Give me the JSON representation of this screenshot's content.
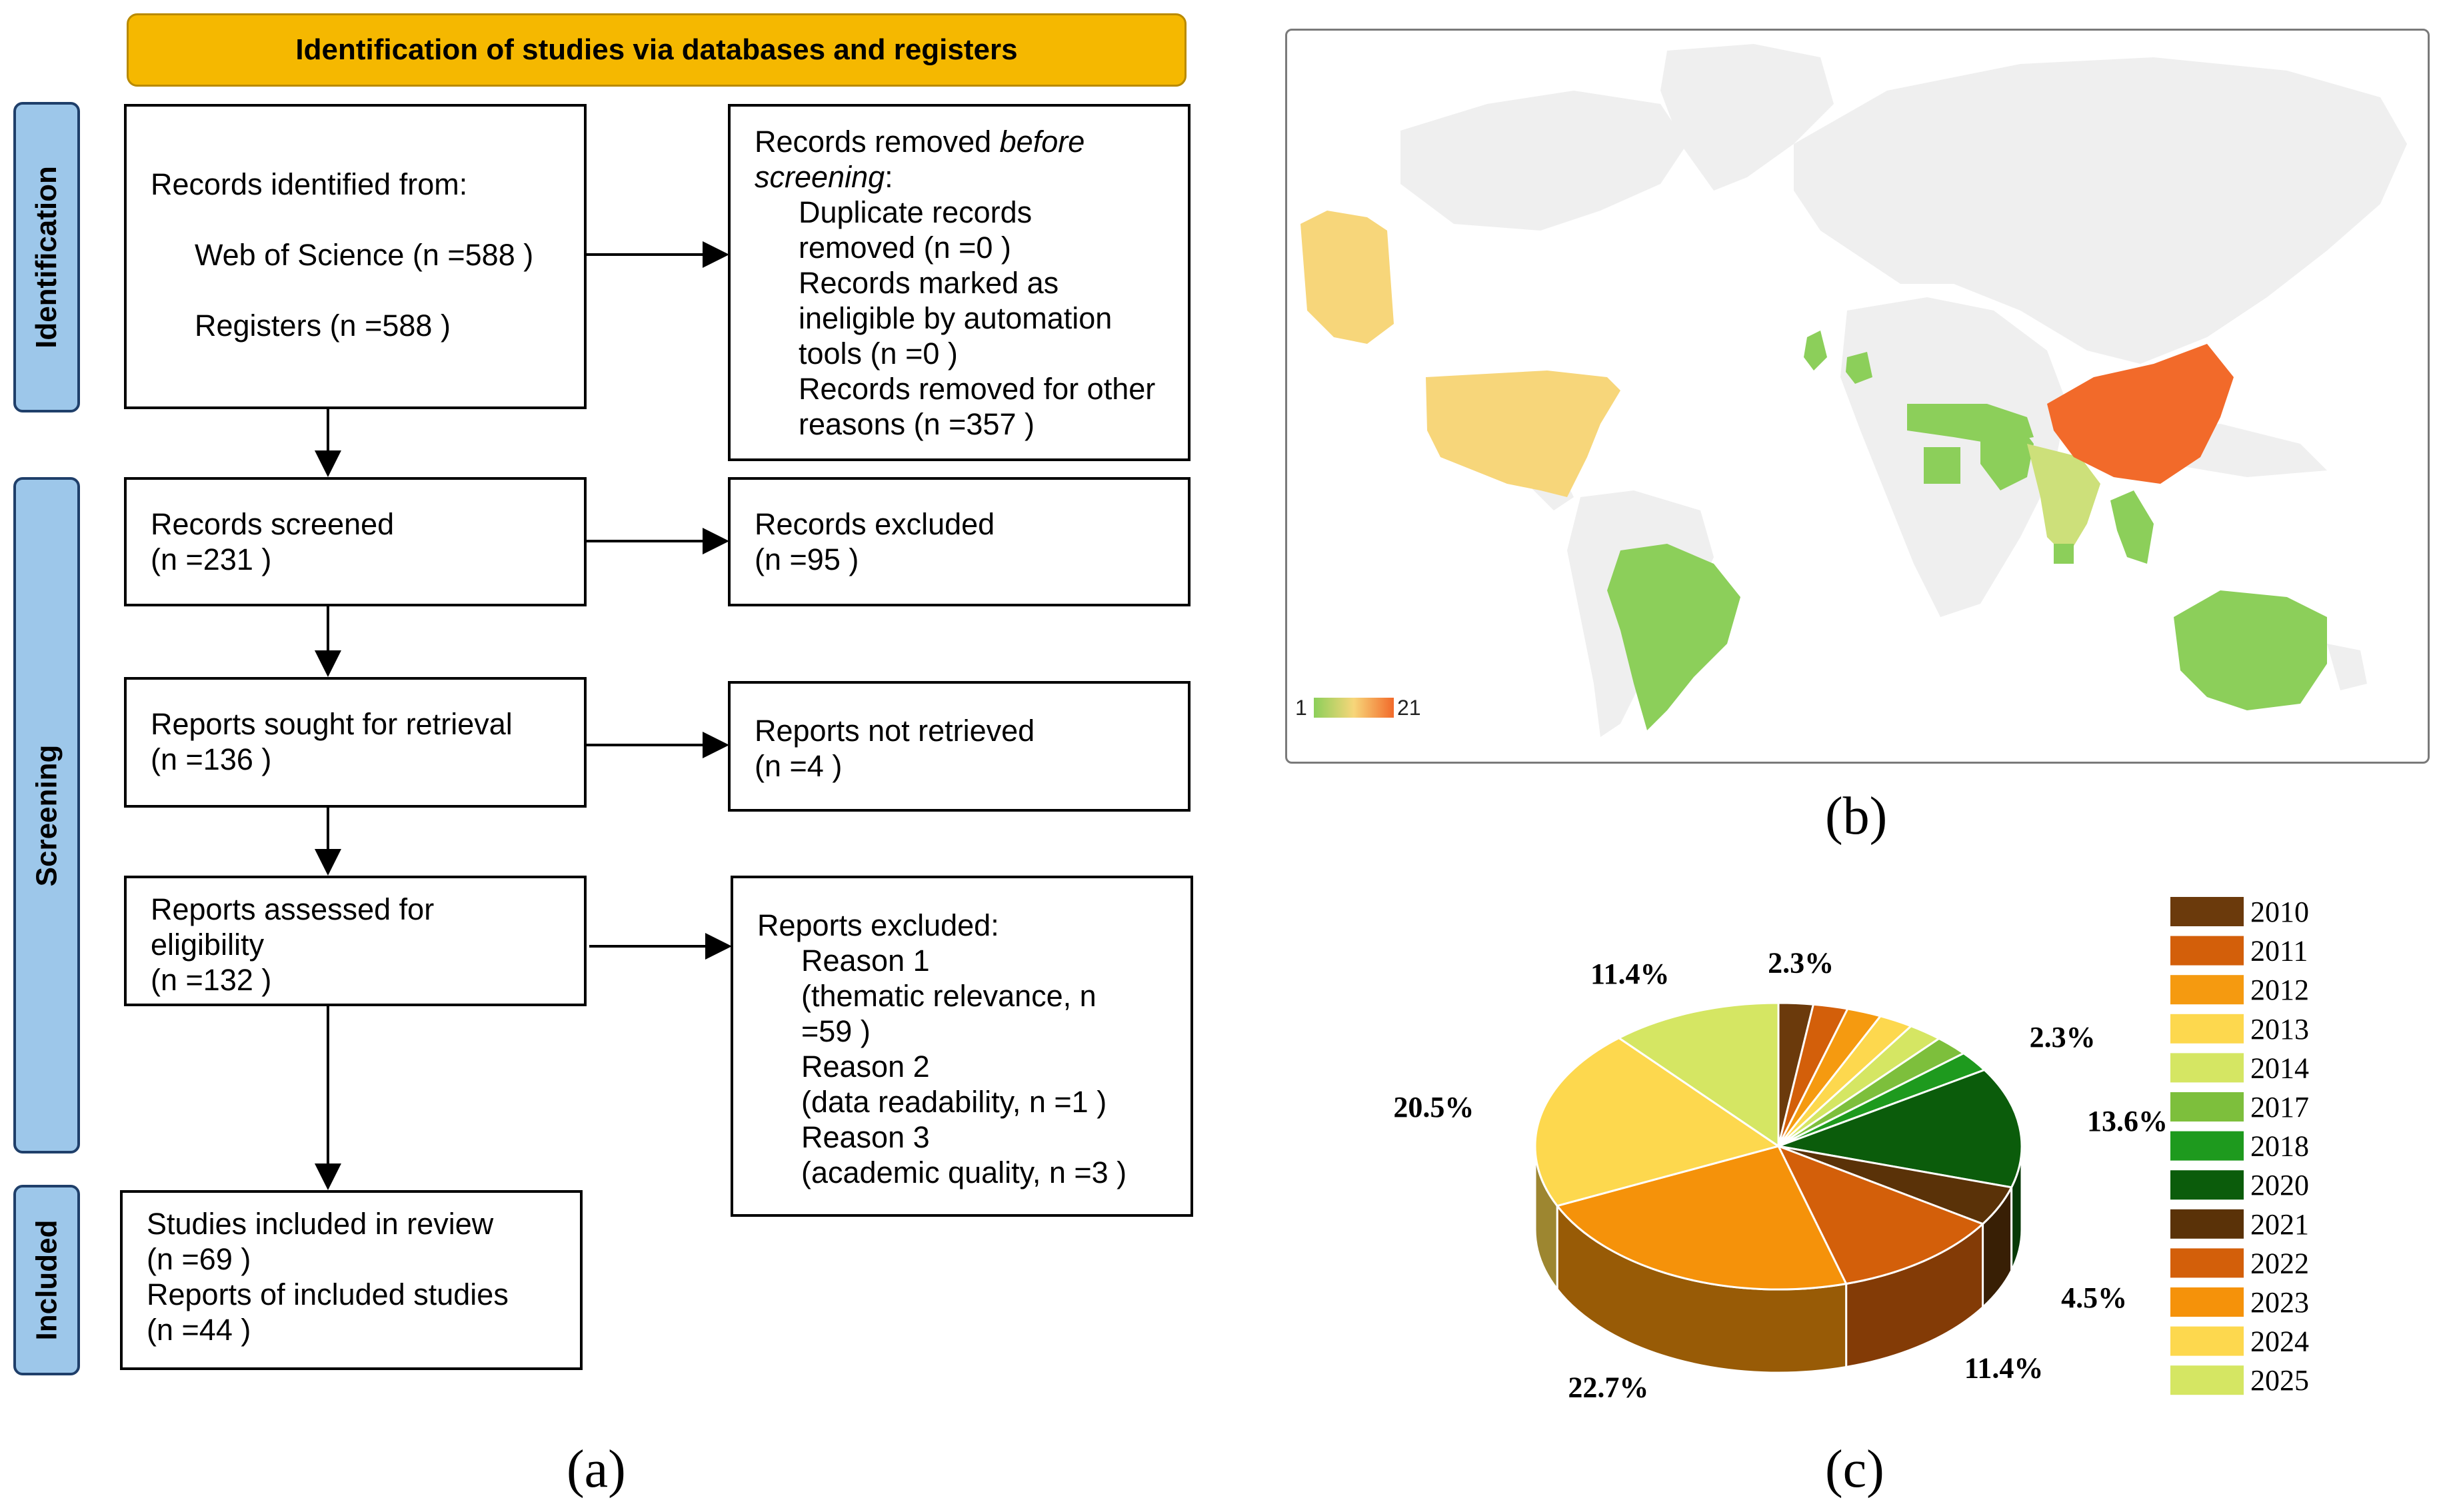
{
  "panel_a": {
    "header": "Identification of studies via databases and registers",
    "phases": [
      "Identification",
      "Screening",
      "Included"
    ],
    "identified": {
      "title": "Records identified from:",
      "lines": [
        "Web of Science (n =588 )",
        "Registers (n =588 )"
      ]
    },
    "removed": {
      "title_plain": "Records removed ",
      "title_italic": "before",
      "title_italic_2": "screening",
      "title_colon": ":",
      "lines": [
        "Duplicate records",
        "removed  (n =0 )",
        "Records marked as",
        "ineligible by automation",
        "tools (n =0 )",
        "Records removed for other",
        "reasons (n =357 )"
      ]
    },
    "screened": {
      "lines": [
        "Records screened",
        "(n =231 )"
      ]
    },
    "excluded": {
      "lines": [
        "Records excluded",
        "(n =95 )"
      ]
    },
    "sought": {
      "lines": [
        "Reports sought for retrieval",
        "(n =136 )"
      ]
    },
    "not_retrieved": {
      "lines": [
        "Reports not retrieved",
        "(n =4 )"
      ]
    },
    "assessed": {
      "lines": [
        "Reports assessed for",
        "eligibility",
        "(n =132 )"
      ]
    },
    "reports_excluded": {
      "title": "Reports excluded:",
      "lines": [
        "Reason 1",
        "(thematic relevance, n",
        "=59 )",
        "Reason 2",
        "(data readability, n =1 )",
        "Reason 3",
        "(academic quality, n =3 )"
      ]
    },
    "included": {
      "lines": [
        "Studies included in review",
        "(n =69 )",
        "Reports of included studies",
        "(n =44 )"
      ]
    },
    "label": "(a)"
  },
  "panel_b": {
    "label": "(b)",
    "legend_min": "1",
    "legend_max": "21",
    "colors": {
      "low": "#8ccf5a",
      "mid": "#f7d67a",
      "high": "#f26a2a",
      "land": "#efefef"
    },
    "highlighted_regions": [
      "Alaska",
      "United States",
      "Brazil",
      "United Kingdom",
      "Germany",
      "Egypt",
      "Middle East",
      "Pakistan",
      "India",
      "China",
      "Southeast Asia",
      "Kenya",
      "Australia"
    ]
  },
  "panel_c": {
    "label": "(c)",
    "chart_data": {
      "type": "pie",
      "title": "",
      "categories": [
        "2010",
        "2011",
        "2012",
        "2013",
        "2014",
        "2017",
        "2018",
        "2020",
        "2021",
        "2022",
        "2023",
        "2024",
        "2025"
      ],
      "values": [
        2.3,
        2.3,
        2.3,
        2.3,
        2.3,
        2.3,
        2.3,
        13.6,
        4.5,
        11.4,
        22.7,
        20.5,
        11.4
      ],
      "colors": [
        "#6b3a0c",
        "#d35f0a",
        "#f59a10",
        "#fdd84e",
        "#d5e663",
        "#7dbf3c",
        "#1e9a1e",
        "#0b5c0b",
        "#5a3208",
        "#d35f0a",
        "#f5920a",
        "#fdd84e",
        "#d5e663"
      ],
      "data_labels": [
        "2.3%",
        "",
        "",
        "",
        "",
        "",
        "2.3%",
        "13.6%",
        "4.5%",
        "11.4%",
        "22.7%",
        "20.5%",
        "11.4%"
      ],
      "legend_placement": "right"
    }
  }
}
